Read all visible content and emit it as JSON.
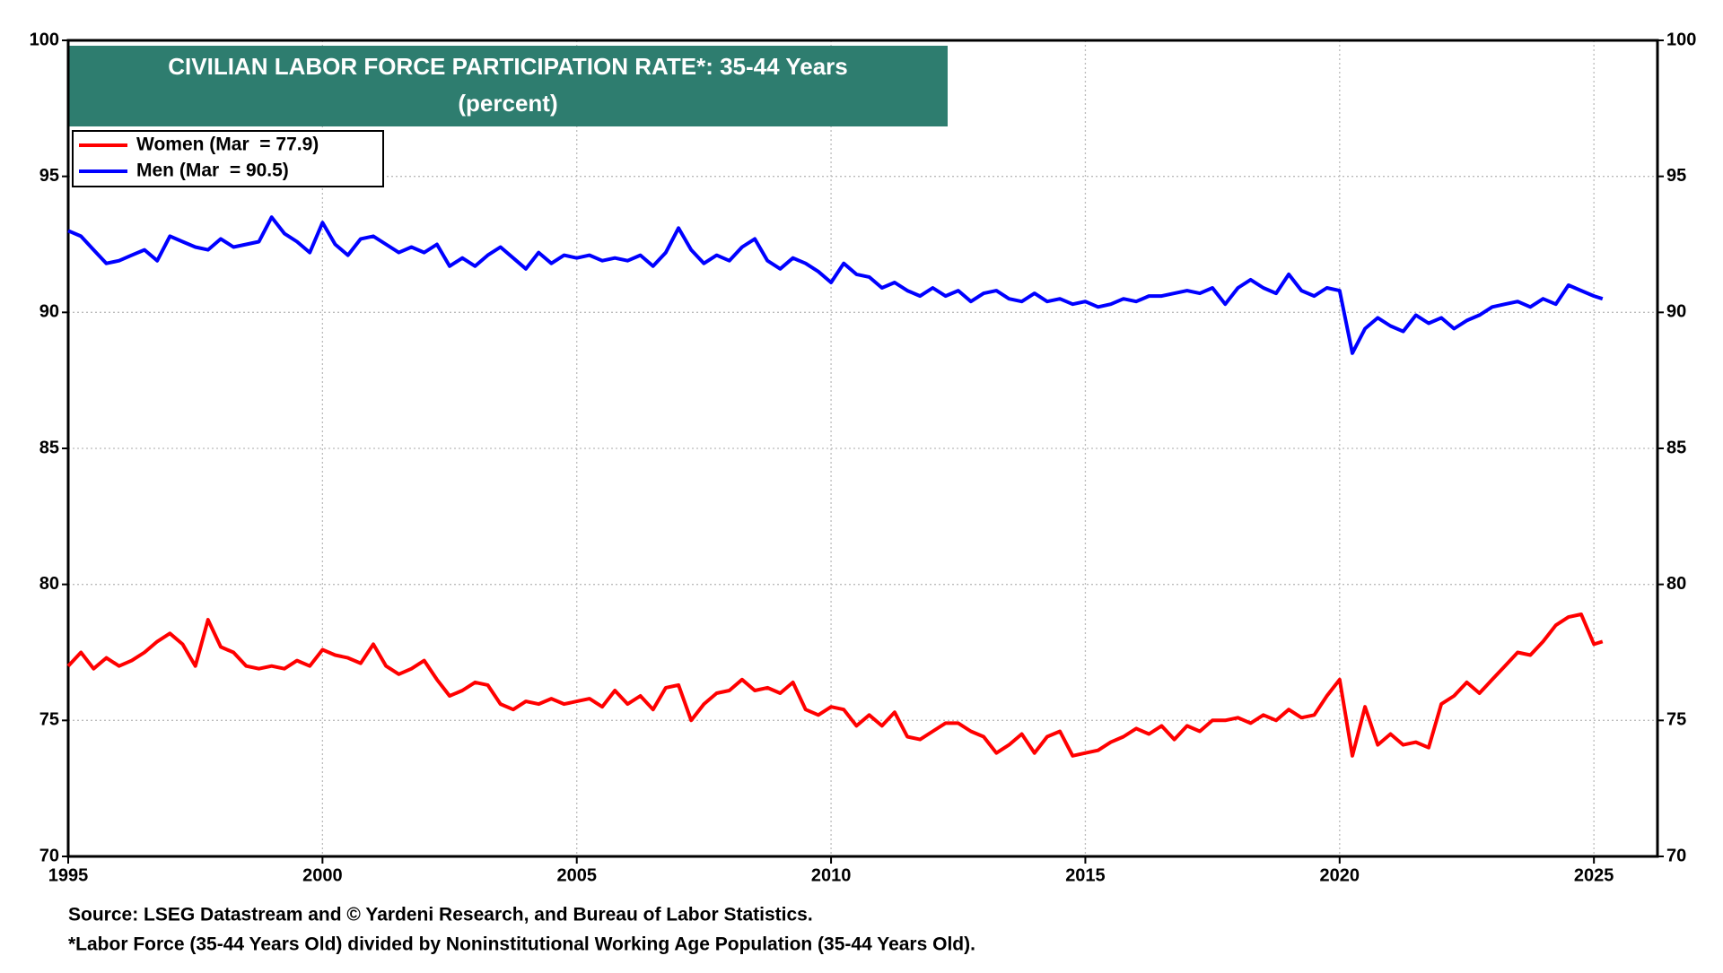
{
  "chart_data": {
    "type": "line",
    "title": "CIVILIAN LABOR FORCE PARTICIPATION RATE*: 35-44 Years",
    "subtitle": "(percent)",
    "source": "Source: LSEG Datastream and © Yardeni Research, and Bureau of Labor Statistics.",
    "footnote": "*Labor Force (35-44 Years Old) divided by Noninstitutional Working Age Population (35-44 Years Old).",
    "x": [
      1995,
      1995.25,
      1995.5,
      1995.75,
      1996,
      1996.25,
      1996.5,
      1996.75,
      1997,
      1997.25,
      1997.5,
      1997.75,
      1998,
      1998.25,
      1998.5,
      1998.75,
      1999,
      1999.25,
      1999.5,
      1999.75,
      2000,
      2000.25,
      2000.5,
      2000.75,
      2001,
      2001.25,
      2001.5,
      2001.75,
      2002,
      2002.25,
      2002.5,
      2002.75,
      2003,
      2003.25,
      2003.5,
      2003.75,
      2004,
      2004.25,
      2004.5,
      2004.75,
      2005,
      2005.25,
      2005.5,
      2005.75,
      2006,
      2006.25,
      2006.5,
      2006.75,
      2007,
      2007.25,
      2007.5,
      2007.75,
      2008,
      2008.25,
      2008.5,
      2008.75,
      2009,
      2009.25,
      2009.5,
      2009.75,
      2010,
      2010.25,
      2010.5,
      2010.75,
      2011,
      2011.25,
      2011.5,
      2011.75,
      2012,
      2012.25,
      2012.5,
      2012.75,
      2013,
      2013.25,
      2013.5,
      2013.75,
      2014,
      2014.25,
      2014.5,
      2014.75,
      2015,
      2015.25,
      2015.5,
      2015.75,
      2016,
      2016.25,
      2016.5,
      2016.75,
      2017,
      2017.25,
      2017.5,
      2017.75,
      2018,
      2018.25,
      2018.5,
      2018.75,
      2019,
      2019.25,
      2019.5,
      2019.75,
      2020,
      2020.25,
      2020.5,
      2020.75,
      2021,
      2021.25,
      2021.5,
      2021.75,
      2022,
      2022.25,
      2022.5,
      2022.75,
      2023,
      2023.25,
      2023.5,
      2023.75,
      2024,
      2024.25,
      2024.5,
      2024.75,
      2025,
      2025.17
    ],
    "series": [
      {
        "name": "Women (Mar  = 77.9)",
        "color": "#ff0000",
        "values": [
          77.0,
          77.5,
          76.9,
          77.3,
          77.0,
          77.2,
          77.5,
          77.9,
          78.2,
          77.8,
          77.0,
          78.7,
          77.7,
          77.5,
          77.0,
          76.9,
          77.0,
          76.9,
          77.2,
          77.0,
          77.6,
          77.4,
          77.3,
          77.1,
          77.8,
          77.0,
          76.7,
          76.9,
          77.2,
          76.5,
          75.9,
          76.1,
          76.4,
          76.3,
          75.6,
          75.4,
          75.7,
          75.6,
          75.8,
          75.6,
          75.7,
          75.8,
          75.5,
          76.1,
          75.6,
          75.9,
          75.4,
          76.2,
          76.3,
          75.0,
          75.6,
          76.0,
          76.1,
          76.5,
          76.1,
          76.2,
          76.0,
          76.4,
          75.4,
          75.2,
          75.5,
          75.4,
          74.8,
          75.2,
          74.8,
          75.3,
          74.4,
          74.3,
          74.6,
          74.9,
          74.9,
          74.6,
          74.4,
          73.8,
          74.1,
          74.5,
          73.8,
          74.4,
          74.6,
          73.7,
          73.8,
          73.9,
          74.2,
          74.4,
          74.7,
          74.5,
          74.8,
          74.3,
          74.8,
          74.6,
          75.0,
          75.0,
          75.1,
          74.9,
          75.2,
          75.0,
          75.4,
          75.1,
          75.2,
          75.9,
          76.5,
          73.7,
          75.5,
          74.1,
          74.5,
          74.1,
          74.2,
          74.0,
          75.6,
          75.9,
          76.4,
          76.0,
          76.5,
          77.0,
          77.5,
          77.4,
          77.9,
          78.5,
          78.8,
          78.9,
          77.8,
          77.9
        ]
      },
      {
        "name": "Men (Mar  = 90.5)",
        "color": "#0000ff",
        "values": [
          93.0,
          92.8,
          92.3,
          91.8,
          91.9,
          92.1,
          92.3,
          91.9,
          92.8,
          92.6,
          92.4,
          92.3,
          92.7,
          92.4,
          92.5,
          92.6,
          93.5,
          92.9,
          92.6,
          92.2,
          93.3,
          92.5,
          92.1,
          92.7,
          92.8,
          92.5,
          92.2,
          92.4,
          92.2,
          92.5,
          91.7,
          92.0,
          91.7,
          92.1,
          92.4,
          92.0,
          91.6,
          92.2,
          91.8,
          92.1,
          92.0,
          92.1,
          91.9,
          92.0,
          91.9,
          92.1,
          91.7,
          92.2,
          93.1,
          92.3,
          91.8,
          92.1,
          91.9,
          92.4,
          92.7,
          91.9,
          91.6,
          92.0,
          91.8,
          91.5,
          91.1,
          91.8,
          91.4,
          91.3,
          90.9,
          91.1,
          90.8,
          90.6,
          90.9,
          90.6,
          90.8,
          90.4,
          90.7,
          90.8,
          90.5,
          90.4,
          90.7,
          90.4,
          90.5,
          90.3,
          90.4,
          90.2,
          90.3,
          90.5,
          90.4,
          90.6,
          90.6,
          90.7,
          90.8,
          90.7,
          90.9,
          90.3,
          90.9,
          91.2,
          90.9,
          90.7,
          91.4,
          90.8,
          90.6,
          90.9,
          90.8,
          88.5,
          89.4,
          89.8,
          89.5,
          89.3,
          89.9,
          89.6,
          89.8,
          89.4,
          89.7,
          89.9,
          90.2,
          90.3,
          90.4,
          90.2,
          90.5,
          90.3,
          91.0,
          90.8,
          90.6,
          90.5
        ]
      }
    ],
    "xlim": [
      1995,
      2026.25
    ],
    "xticks": [
      1995,
      2000,
      2005,
      2010,
      2015,
      2020,
      2025
    ],
    "ylim": [
      70,
      100
    ],
    "yticks": [
      70,
      75,
      80,
      85,
      90,
      95,
      100
    ],
    "y2lim": [
      70,
      100
    ],
    "y2ticks": [
      70,
      75,
      80,
      85,
      90,
      95,
      100
    ],
    "grid": true
  }
}
